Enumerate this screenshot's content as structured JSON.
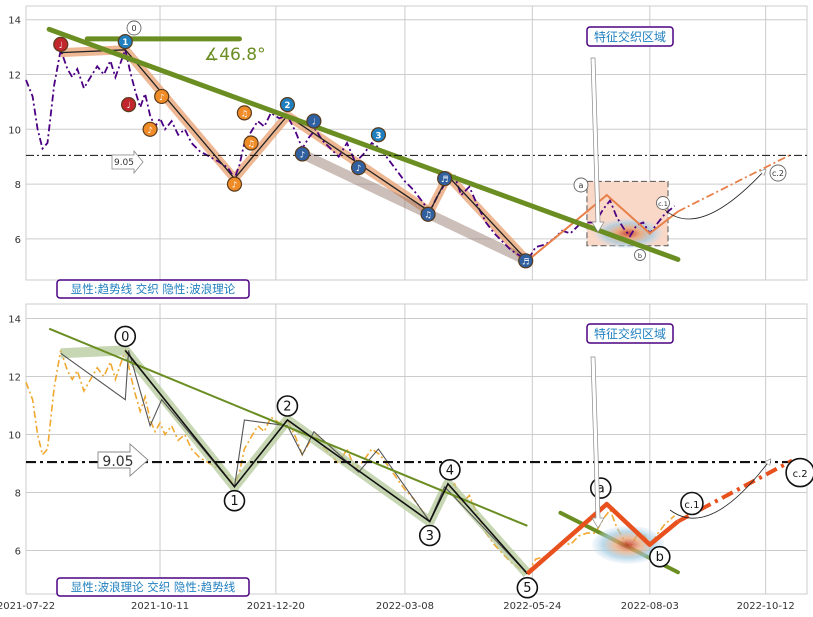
{
  "colors": {
    "grid": "#cccccc",
    "trend": "#6b8e23",
    "price_top": "#4b0082",
    "price_bottom": "#f0a830",
    "wave_fill_top": "#e8a070",
    "wave_fill_bottom": "#b5c99a",
    "forecast": "#e8501e",
    "box_fill": "#f9d8c8",
    "label_text": "#1f7fbf",
    "label_border": "#4b0082"
  },
  "chart_data": [
    {
      "type": "line",
      "panel": "top",
      "x_ticks": [],
      "y_ticks": [
        6,
        8,
        10,
        12,
        14
      ],
      "ylim": [
        4.5,
        14.5
      ],
      "x_domain": [
        "2021-07-22",
        "2022-11-06"
      ],
      "grid": true,
      "reference_line": {
        "value": 9.05,
        "label": "9.05"
      },
      "trendline": {
        "from": {
          "x": "2021-08-05",
          "y": 13.65
        },
        "to": {
          "x": "2022-08-20",
          "y": 5.25
        }
      },
      "angle_label": "∡46.8°",
      "bottom_label": "显性:趋势线 交织 隐性:波浪理论",
      "box_label": "特征交织区域",
      "wave_labels": [
        "0",
        "1",
        "2",
        "3",
        "4",
        "5",
        "a",
        "b",
        "c.1",
        "c.2"
      ],
      "markers": [
        {
          "x": "2021-08-12",
          "y": 13.1,
          "color": "#c1272d",
          "glyph": "♩"
        },
        {
          "x": "2021-09-20",
          "y": 13.2,
          "color": "#1f7fbf",
          "glyph": "1"
        },
        {
          "x": "2021-09-22",
          "y": 10.9,
          "color": "#c1272d",
          "glyph": "♩"
        },
        {
          "x": "2021-10-05",
          "y": 10.0,
          "color": "#f08c28",
          "glyph": "♪"
        },
        {
          "x": "2021-10-12",
          "y": 11.2,
          "color": "#f08c28",
          "glyph": "♪"
        },
        {
          "x": "2021-11-25",
          "y": 8.0,
          "color": "#f08c28",
          "glyph": "♪"
        },
        {
          "x": "2021-12-01",
          "y": 10.6,
          "color": "#f08c28",
          "glyph": "♫"
        },
        {
          "x": "2021-12-05",
          "y": 9.5,
          "color": "#f08c28",
          "glyph": "♫"
        },
        {
          "x": "2021-12-27",
          "y": 10.9,
          "color": "#1f7fbf",
          "glyph": "2"
        },
        {
          "x": "2022-01-05",
          "y": 9.1,
          "color": "#3060a0",
          "glyph": "♪"
        },
        {
          "x": "2022-01-12",
          "y": 10.3,
          "color": "#3060a0",
          "glyph": "♩"
        },
        {
          "x": "2022-02-08",
          "y": 8.6,
          "color": "#3060a0",
          "glyph": "♪"
        },
        {
          "x": "2022-02-20",
          "y": 9.8,
          "color": "#1f7fbf",
          "glyph": "3"
        },
        {
          "x": "2022-03-22",
          "y": 6.9,
          "color": "#3060a0",
          "glyph": "♫"
        },
        {
          "x": "2022-04-01",
          "y": 8.2,
          "color": "#3060a0",
          "glyph": "♬"
        },
        {
          "x": "2022-05-20",
          "y": 5.2,
          "color": "#3060a0",
          "glyph": "♬"
        }
      ],
      "series": [
        {
          "style": "dash-dot",
          "points": [
            [
              "2021-07-22",
              11.8
            ],
            [
              "2021-07-26",
              11.2
            ],
            [
              "2021-07-29",
              10.0
            ],
            [
              "2021-08-01",
              9.3
            ],
            [
              "2021-08-04",
              9.5
            ],
            [
              "2021-08-08",
              11.6
            ],
            [
              "2021-08-12",
              12.9
            ],
            [
              "2021-08-16",
              12.2
            ],
            [
              "2021-08-19",
              11.9
            ],
            [
              "2021-08-22",
              12.2
            ],
            [
              "2021-08-26",
              11.5
            ],
            [
              "2021-08-30",
              11.9
            ],
            [
              "2021-09-03",
              12.3
            ],
            [
              "2021-09-07",
              12.0
            ],
            [
              "2021-09-11",
              12.5
            ],
            [
              "2021-09-14",
              11.9
            ],
            [
              "2021-09-17",
              12.4
            ],
            [
              "2021-09-20",
              12.9
            ],
            [
              "2021-09-23",
              12.1
            ],
            [
              "2021-09-26",
              11.4
            ],
            [
              "2021-09-29",
              10.8
            ],
            [
              "2021-10-02",
              11.3
            ],
            [
              "2021-10-05",
              10.5
            ],
            [
              "2021-10-08",
              10.1
            ],
            [
              "2021-10-11",
              10.4
            ],
            [
              "2021-10-14",
              10.0
            ],
            [
              "2021-10-18",
              10.3
            ],
            [
              "2021-10-22",
              9.8
            ],
            [
              "2021-10-26",
              10.0
            ],
            [
              "2021-10-30",
              9.5
            ],
            [
              "2021-11-04",
              9.2
            ],
            [
              "2021-11-10",
              9.0
            ],
            [
              "2021-11-16",
              8.8
            ],
            [
              "2021-11-21",
              8.6
            ],
            [
              "2021-11-25",
              8.2
            ],
            [
              "2021-11-28",
              8.7
            ],
            [
              "2021-12-01",
              9.5
            ],
            [
              "2021-12-05",
              9.9
            ],
            [
              "2021-12-09",
              10.3
            ],
            [
              "2021-12-13",
              10.1
            ],
            [
              "2021-12-17",
              10.6
            ],
            [
              "2021-12-22",
              10.4
            ],
            [
              "2021-12-27",
              10.5
            ],
            [
              "2022-01-01",
              9.9
            ],
            [
              "2022-01-05",
              9.3
            ],
            [
              "2022-01-09",
              9.7
            ],
            [
              "2022-01-13",
              10.0
            ],
            [
              "2022-01-17",
              9.6
            ],
            [
              "2022-01-22",
              9.3
            ],
            [
              "2022-01-27",
              9.0
            ],
            [
              "2022-02-01",
              9.5
            ],
            [
              "2022-02-06",
              8.8
            ],
            [
              "2022-02-11",
              9.1
            ],
            [
              "2022-02-16",
              9.5
            ],
            [
              "2022-02-21",
              9.3
            ],
            [
              "2022-02-26",
              8.9
            ],
            [
              "2022-03-03",
              8.5
            ],
            [
              "2022-03-08",
              8.1
            ],
            [
              "2022-03-13",
              7.8
            ],
            [
              "2022-03-18",
              7.4
            ],
            [
              "2022-03-23",
              7.0
            ],
            [
              "2022-03-28",
              7.6
            ],
            [
              "2022-04-02",
              8.1
            ],
            [
              "2022-04-07",
              8.3
            ],
            [
              "2022-04-11",
              7.6
            ],
            [
              "2022-04-16",
              7.9
            ],
            [
              "2022-04-21",
              7.2
            ],
            [
              "2022-04-26",
              6.6
            ],
            [
              "2022-05-01",
              6.2
            ],
            [
              "2022-05-06",
              5.9
            ],
            [
              "2022-05-11",
              5.6
            ],
            [
              "2022-05-16",
              5.4
            ],
            [
              "2022-05-21",
              5.2
            ],
            [
              "2022-05-26",
              5.7
            ],
            [
              "2022-06-01",
              5.8
            ],
            [
              "2022-06-06",
              6.0
            ],
            [
              "2022-06-11",
              6.3
            ],
            [
              "2022-06-16",
              6.2
            ],
            [
              "2022-06-21",
              6.5
            ],
            [
              "2022-06-26",
              6.6
            ],
            [
              "2022-07-01",
              6.6
            ],
            [
              "2022-07-06",
              7.1
            ],
            [
              "2022-07-10",
              7.4
            ],
            [
              "2022-07-14",
              6.8
            ],
            [
              "2022-07-18",
              6.4
            ],
            [
              "2022-07-22",
              6.1
            ],
            [
              "2022-07-26",
              6.5
            ],
            [
              "2022-07-30",
              6.6
            ],
            [
              "2022-08-03",
              6.2
            ],
            [
              "2022-08-08",
              6.6
            ],
            [
              "2022-08-12",
              6.9
            ],
            [
              "2022-08-18",
              7.2
            ]
          ]
        }
      ]
    },
    {
      "type": "line",
      "panel": "bottom",
      "x_ticks": [
        "2021-07-22",
        "2021-10-11",
        "2021-12-20",
        "2022-03-08",
        "2022-05-24",
        "2022-08-03",
        "2022-10-12"
      ],
      "y_ticks": [
        6,
        8,
        10,
        12,
        14
      ],
      "ylim": [
        4.5,
        14.5
      ],
      "x_domain": [
        "2021-07-22",
        "2022-11-06"
      ],
      "grid": true,
      "reference_line": {
        "value": 9.05,
        "label": "9.05"
      },
      "bottom_label": "显性:波浪理论 交织 隐性:趋势线",
      "box_label": "特征交织区域",
      "wave_points": [
        {
          "label": "0",
          "x": "2021-09-20",
          "y": 12.9
        },
        {
          "label": "1",
          "x": "2021-11-25",
          "y": 8.2
        },
        {
          "label": "2",
          "x": "2021-12-27",
          "y": 10.5
        },
        {
          "label": "3",
          "x": "2022-03-23",
          "y": 7.0
        },
        {
          "label": "4",
          "x": "2022-04-03",
          "y": 8.3
        },
        {
          "label": "5",
          "x": "2022-05-21",
          "y": 5.2
        },
        {
          "label": "a",
          "x": "2022-07-08",
          "y": 7.6
        },
        {
          "label": "b",
          "x": "2022-08-03",
          "y": 6.2
        },
        {
          "label": "c.1",
          "x": "2022-08-20",
          "y": 7.0
        },
        {
          "label": "c.2",
          "x": "2022-10-28",
          "y": 9.1
        }
      ]
    }
  ]
}
